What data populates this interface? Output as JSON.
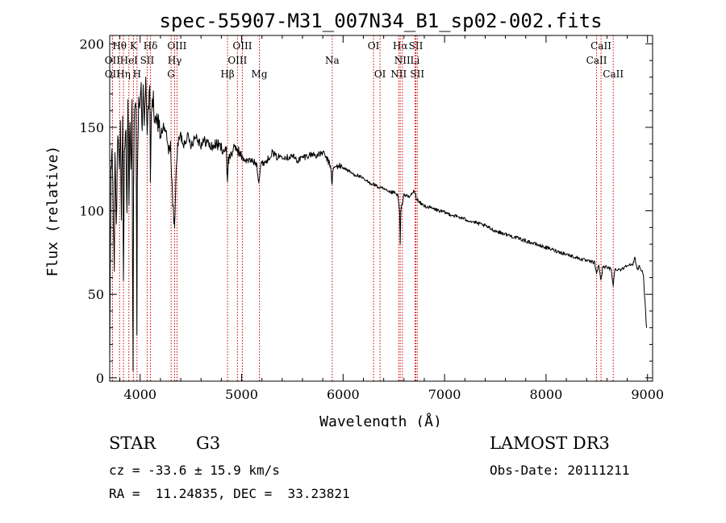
{
  "chart_data": {
    "type": "line",
    "title": "spec-55907-M31_007N34_B1_sp02-002.fits",
    "xlabel": "Wavelength (Å)",
    "ylabel": "Flux (relative)",
    "xlim": [
      3700,
      9050
    ],
    "ylim": [
      -2,
      205
    ],
    "x_ticks": [
      4000,
      5000,
      6000,
      7000,
      8000,
      9000
    ],
    "y_ticks": [
      0,
      50,
      100,
      150,
      200
    ],
    "line_color": "#000000",
    "marker_color": "#cc0000",
    "anchors": [
      [
        3700,
        5
      ],
      [
        3705,
        60
      ],
      [
        3712,
        120
      ],
      [
        3722,
        140
      ],
      [
        3735,
        100
      ],
      [
        3745,
        65
      ],
      [
        3752,
        140
      ],
      [
        3765,
        90
      ],
      [
        3780,
        145
      ],
      [
        3795,
        120
      ],
      [
        3805,
        150
      ],
      [
        3815,
        100
      ],
      [
        3828,
        160
      ],
      [
        3835,
        55
      ],
      [
        3845,
        135
      ],
      [
        3860,
        150
      ],
      [
        3870,
        95
      ],
      [
        3880,
        165
      ],
      [
        3890,
        100
      ],
      [
        3900,
        160
      ],
      [
        3910,
        120
      ],
      [
        3920,
        170
      ],
      [
        3925,
        60
      ],
      [
        3930,
        10
      ],
      [
        3935,
        120
      ],
      [
        3945,
        165
      ],
      [
        3960,
        155
      ],
      [
        3965,
        75
      ],
      [
        3968,
        28
      ],
      [
        3972,
        110
      ],
      [
        3985,
        170
      ],
      [
        4000,
        160
      ],
      [
        4010,
        175
      ],
      [
        4020,
        150
      ],
      [
        4030,
        170
      ],
      [
        4040,
        155
      ],
      [
        4055,
        180
      ],
      [
        4070,
        150
      ],
      [
        4085,
        165
      ],
      [
        4095,
        170
      ],
      [
        4101,
        120
      ],
      [
        4110,
        160
      ],
      [
        4130,
        165
      ],
      [
        4150,
        150
      ],
      [
        4180,
        155
      ],
      [
        4200,
        145
      ],
      [
        4230,
        150
      ],
      [
        4260,
        145
      ],
      [
        4280,
        135
      ],
      [
        4300,
        140
      ],
      [
        4310,
        120
      ],
      [
        4320,
        105
      ],
      [
        4330,
        98
      ],
      [
        4340,
        90
      ],
      [
        4350,
        115
      ],
      [
        4370,
        140
      ],
      [
        4400,
        145
      ],
      [
        4430,
        140
      ],
      [
        4460,
        145
      ],
      [
        4500,
        140
      ],
      [
        4550,
        145
      ],
      [
        4600,
        140
      ],
      [
        4650,
        142
      ],
      [
        4700,
        138
      ],
      [
        4750,
        140
      ],
      [
        4800,
        138
      ],
      [
        4850,
        135
      ],
      [
        4855,
        125
      ],
      [
        4861,
        118
      ],
      [
        4868,
        130
      ],
      [
        4900,
        135
      ],
      [
        4950,
        138
      ],
      [
        5000,
        132
      ],
      [
        5050,
        130
      ],
      [
        5100,
        130
      ],
      [
        5150,
        128
      ],
      [
        5167,
        118
      ],
      [
        5175,
        120
      ],
      [
        5190,
        128
      ],
      [
        5250,
        130
      ],
      [
        5300,
        135
      ],
      [
        5350,
        132
      ],
      [
        5400,
        133
      ],
      [
        5450,
        132
      ],
      [
        5500,
        133
      ],
      [
        5550,
        130
      ],
      [
        5600,
        132
      ],
      [
        5650,
        133
      ],
      [
        5700,
        134
      ],
      [
        5750,
        133
      ],
      [
        5800,
        135
      ],
      [
        5850,
        130
      ],
      [
        5880,
        126
      ],
      [
        5892,
        115
      ],
      [
        5900,
        125
      ],
      [
        5950,
        127
      ],
      [
        6000,
        126
      ],
      [
        6050,
        124
      ],
      [
        6100,
        122
      ],
      [
        6150,
        121
      ],
      [
        6200,
        119
      ],
      [
        6250,
        117
      ],
      [
        6300,
        116
      ],
      [
        6350,
        114
      ],
      [
        6400,
        113
      ],
      [
        6450,
        111
      ],
      [
        6500,
        111
      ],
      [
        6540,
        109
      ],
      [
        6556,
        100
      ],
      [
        6563,
        80
      ],
      [
        6570,
        100
      ],
      [
        6600,
        110
      ],
      [
        6650,
        108
      ],
      [
        6700,
        112
      ],
      [
        6720,
        108
      ],
      [
        6750,
        105
      ],
      [
        6800,
        103
      ],
      [
        6900,
        101
      ],
      [
        7000,
        99
      ],
      [
        7100,
        97
      ],
      [
        7200,
        95
      ],
      [
        7300,
        93
      ],
      [
        7400,
        91
      ],
      [
        7500,
        88
      ],
      [
        7600,
        86
      ],
      [
        7700,
        84
      ],
      [
        7800,
        82
      ],
      [
        7900,
        80
      ],
      [
        8000,
        78
      ],
      [
        8100,
        76
      ],
      [
        8200,
        74
      ],
      [
        8300,
        72
      ],
      [
        8400,
        70
      ],
      [
        8480,
        69
      ],
      [
        8498,
        62
      ],
      [
        8520,
        68
      ],
      [
        8542,
        58
      ],
      [
        8560,
        67
      ],
      [
        8600,
        66
      ],
      [
        8640,
        65
      ],
      [
        8662,
        56
      ],
      [
        8680,
        65
      ],
      [
        8750,
        65
      ],
      [
        8800,
        68
      ],
      [
        8850,
        67
      ],
      [
        8875,
        72
      ],
      [
        8900,
        65
      ],
      [
        8920,
        67
      ],
      [
        8940,
        64
      ],
      [
        8960,
        62
      ],
      [
        8975,
        45
      ],
      [
        8985,
        35
      ],
      [
        8990,
        30
      ]
    ],
    "lines": [
      {
        "label": "Hθ",
        "wl": 3797,
        "row": 0
      },
      {
        "label": "OII",
        "wl": 3727,
        "row": 1
      },
      {
        "label": "OII",
        "wl": 3727,
        "row": 2
      },
      {
        "label": "K",
        "wl": 3934,
        "row": 0
      },
      {
        "label": "HeI",
        "wl": 3889,
        "row": 1
      },
      {
        "label": "Hη",
        "wl": 3835,
        "row": 2
      },
      {
        "label": "SII",
        "wl": 4069,
        "row": 1
      },
      {
        "label": "H",
        "wl": 3969,
        "row": 2
      },
      {
        "label": "Hδ",
        "wl": 4102,
        "row": 0
      },
      {
        "label": "OIII",
        "wl": 4363,
        "row": 0
      },
      {
        "label": "Hγ",
        "wl": 4340,
        "row": 1
      },
      {
        "label": "G",
        "wl": 4305,
        "row": 2
      },
      {
        "label": "OIII",
        "wl": 5007,
        "row": 0
      },
      {
        "label": "OIII",
        "wl": 4959,
        "row": 1
      },
      {
        "label": "Hβ",
        "wl": 4861,
        "row": 2
      },
      {
        "label": "Mg",
        "wl": 5175,
        "row": 2
      },
      {
        "label": "Na",
        "wl": 5893,
        "row": 1
      },
      {
        "label": "OI",
        "wl": 6300,
        "row": 0
      },
      {
        "label": "OI",
        "wl": 6364,
        "row": 2
      },
      {
        "label": "Hα",
        "wl": 6563,
        "row": 0
      },
      {
        "label": "SII",
        "wl": 6717,
        "row": 0
      },
      {
        "label": "NII",
        "wl": 6584,
        "row": 1
      },
      {
        "label": "Li",
        "wl": 6708,
        "row": 1
      },
      {
        "label": "NII",
        "wl": 6548,
        "row": 2
      },
      {
        "label": "SII",
        "wl": 6731,
        "row": 2
      },
      {
        "label": "CaII",
        "wl": 8542,
        "row": 0
      },
      {
        "label": "CaII",
        "wl": 8498,
        "row": 1
      },
      {
        "label": "CaII",
        "wl": 8662,
        "row": 2
      }
    ]
  },
  "info": {
    "object_class": "STAR",
    "subclass": "G3",
    "survey": "LAMOST DR3",
    "redshift_text": "cz = -33.6 ± 15.9 km/s",
    "obs_date_text": "Obs-Date: 20111211",
    "coords_text": "RA =  11.24835, DEC =  33.23821"
  }
}
